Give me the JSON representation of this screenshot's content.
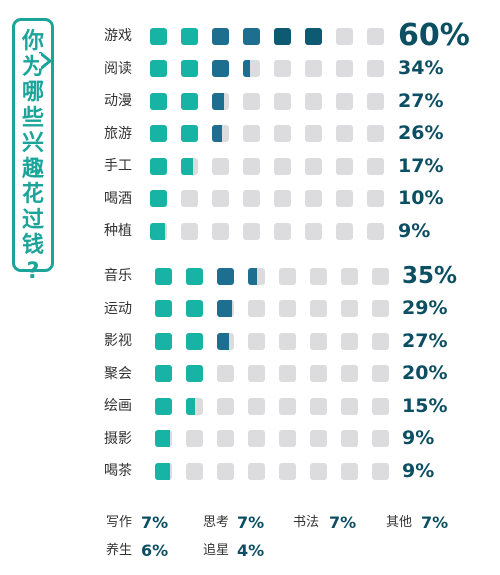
{
  "title": {
    "text": "你为哪些兴趣花过钱?"
  },
  "chart_data": {
    "type": "bar",
    "unit": "%",
    "groups": [
      {
        "categories": [
          "游戏",
          "阅读",
          "动漫",
          "旅游",
          "手工",
          "喝酒",
          "种植"
        ],
        "values": [
          60,
          34,
          27,
          26,
          17,
          10,
          9
        ]
      },
      {
        "categories": [
          "音乐",
          "运动",
          "影视",
          "聚会",
          "绘画",
          "摄影",
          "喝茶"
        ],
        "values": [
          35,
          29,
          27,
          20,
          15,
          9,
          9
        ]
      }
    ],
    "scale_per_square": 10,
    "others": [
      {
        "label": "写作",
        "value": 7
      },
      {
        "label": "思考",
        "value": 7
      },
      {
        "label": "书法",
        "value": 7
      },
      {
        "label": "其他",
        "value": 7
      },
      {
        "label": "养生",
        "value": 6
      },
      {
        "label": "追星",
        "value": 4
      }
    ]
  },
  "colors": {
    "teal": "#17b3a4",
    "blue": "#1e6e8f",
    "dark": "#0e5a72",
    "empty": "#dcdcde",
    "text": "#333333",
    "value": "#0d4f62",
    "accent": "#1ba59a"
  }
}
